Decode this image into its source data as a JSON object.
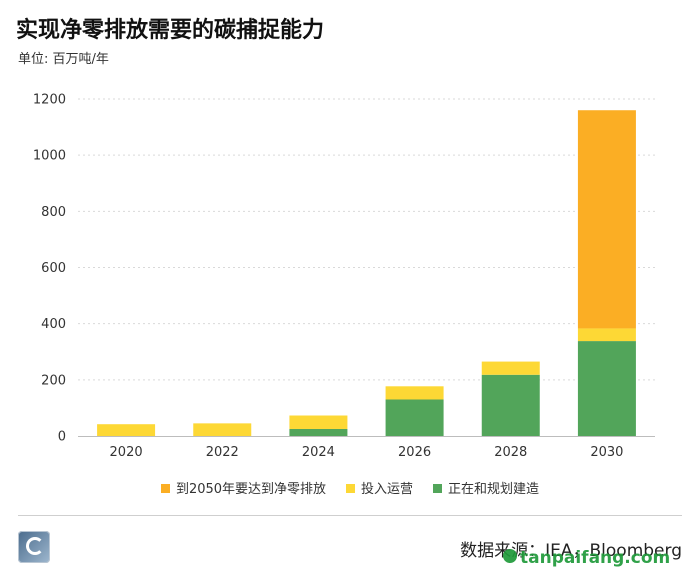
{
  "title": "实现净零排放需要的碳捕捉能力",
  "unit_label": "单位: 百万吨/年",
  "source": "数据来源：IEA，Bloomberg",
  "watermark": "tanpaifang.com",
  "colors": {
    "needed_2050": "#FBAE24",
    "in_operation": "#FDD835",
    "under_construction": "#52A55A",
    "grid": "#d9d9d9",
    "axis": "#bdbdbd"
  },
  "chart_data": {
    "type": "bar",
    "stacked": true,
    "categories": [
      "2020",
      "2022",
      "2024",
      "2026",
      "2028",
      "2030"
    ],
    "series": [
      {
        "name": "正在和规划建造",
        "color_key": "under_construction",
        "values": [
          0,
          0,
          25,
          130,
          218,
          338
        ]
      },
      {
        "name": "投入运营",
        "color_key": "in_operation",
        "values": [
          42,
          45,
          48,
          47,
          47,
          45
        ]
      },
      {
        "name": "到2050年要达到净零排放",
        "color_key": "needed_2050",
        "values": [
          0,
          0,
          0,
          0,
          0,
          777
        ]
      }
    ],
    "legend_order": [
      "到2050年要达到净零排放",
      "投入运营",
      "正在和规划建造"
    ],
    "ylim": [
      0,
      1200
    ],
    "yticks": [
      0,
      200,
      400,
      600,
      800,
      1000,
      1200
    ],
    "grid": true,
    "legend_position": "bottom",
    "xlabel": "",
    "ylabel": ""
  }
}
